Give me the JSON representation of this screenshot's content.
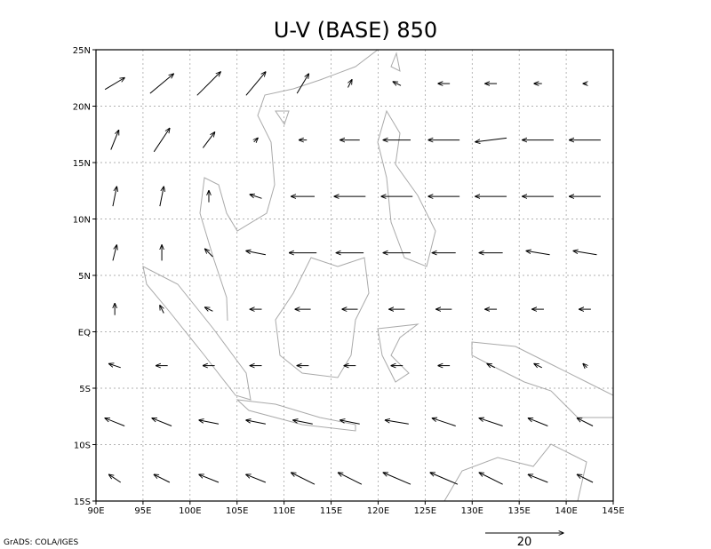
{
  "map": {
    "title": "U-V (BASE) 850",
    "xlim": [
      90,
      145
    ],
    "ylim": [
      -15,
      25
    ],
    "xticks": [
      {
        "value": 90,
        "label": "90E"
      },
      {
        "value": 95,
        "label": "95E"
      },
      {
        "value": 100,
        "label": "100E"
      },
      {
        "value": 105,
        "label": "105E"
      },
      {
        "value": 110,
        "label": "110E"
      },
      {
        "value": 115,
        "label": "115E"
      },
      {
        "value": 120,
        "label": "120E"
      },
      {
        "value": 125,
        "label": "125E"
      },
      {
        "value": 130,
        "label": "130E"
      },
      {
        "value": 135,
        "label": "135E"
      },
      {
        "value": 140,
        "label": "140E"
      },
      {
        "value": 145,
        "label": "145E"
      }
    ],
    "yticks": [
      {
        "value": -15,
        "label": "15S"
      },
      {
        "value": -10,
        "label": "10S"
      },
      {
        "value": -5,
        "label": "5S"
      },
      {
        "value": 0,
        "label": "EQ"
      },
      {
        "value": 5,
        "label": "5N"
      },
      {
        "value": 10,
        "label": "10N"
      },
      {
        "value": 15,
        "label": "15N"
      },
      {
        "value": 20,
        "label": "20N"
      },
      {
        "value": 25,
        "label": "25N"
      }
    ],
    "grid": true,
    "footer": "GrADS: COLA/IGES",
    "reference_vector": 20,
    "vectors": {
      "lons": [
        92,
        97,
        102,
        107,
        112,
        117,
        122,
        127,
        132,
        137,
        142
      ],
      "lats": [
        22,
        17,
        12,
        7,
        2,
        -3,
        -8,
        -13
      ],
      "u": [
        [
          5,
          6,
          6,
          5,
          3,
          1,
          -2,
          -3,
          -3,
          -2,
          -1
        ],
        [
          2,
          4,
          3,
          1,
          -2,
          -5,
          -7,
          -8,
          -8,
          -8,
          -8
        ],
        [
          1,
          1,
          0,
          -3,
          -6,
          -8,
          -8,
          -8,
          -8,
          -8,
          -8
        ],
        [
          1,
          0,
          -2,
          -5,
          -7,
          -7,
          -7,
          -6,
          -6,
          -6,
          -6
        ],
        [
          0,
          -1,
          -2,
          -3,
          -4,
          -4,
          -4,
          -4,
          -3,
          -3,
          -3
        ],
        [
          -3,
          -3,
          -3,
          -3,
          -3,
          -3,
          -3,
          -3,
          -2,
          -2,
          -1
        ],
        [
          -5,
          -5,
          -5,
          -5,
          -5,
          -5,
          -6,
          -6,
          -6,
          -5,
          -4
        ],
        [
          -3,
          -4,
          -5,
          -5,
          -6,
          -6,
          -7,
          -7,
          -6,
          -5,
          -4
        ]
      ],
      "v": [
        [
          3,
          5,
          6,
          6,
          5,
          2,
          1,
          0,
          0,
          0,
          0
        ],
        [
          5,
          6,
          4,
          1,
          0,
          0,
          0,
          0,
          -1,
          0,
          0
        ],
        [
          5,
          5,
          3,
          1,
          0,
          0,
          0,
          0,
          0,
          0,
          0
        ],
        [
          4,
          4,
          2,
          1,
          0,
          0,
          0,
          0,
          0,
          1,
          1
        ],
        [
          3,
          2,
          1,
          0,
          0,
          0,
          0,
          0,
          0,
          0,
          0
        ],
        [
          1,
          0,
          0,
          0,
          0,
          0,
          0,
          0,
          1,
          1,
          1
        ],
        [
          2,
          2,
          1,
          1,
          1,
          1,
          1,
          2,
          2,
          2,
          2
        ],
        [
          2,
          2,
          2,
          2,
          3,
          3,
          3,
          3,
          3,
          2,
          2
        ]
      ]
    }
  }
}
